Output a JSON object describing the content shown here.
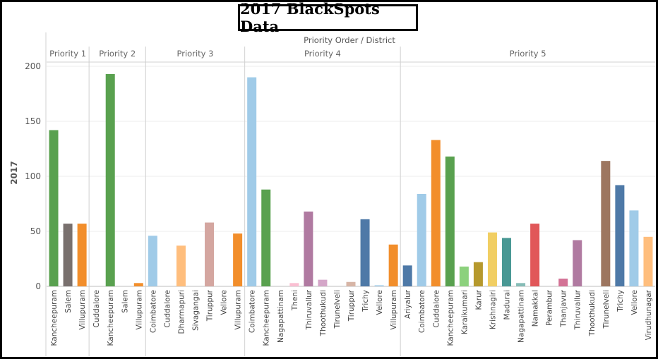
{
  "chart_data": {
    "type": "bar",
    "title": "2017 BlackSpots Data",
    "column_header": "Priority Order / District",
    "ylabel": "2017",
    "ylim": [
      0,
      200
    ],
    "yticks": [
      0,
      50,
      100,
      150,
      200
    ],
    "grid": true,
    "colors": {
      "green": "#59a14f",
      "gray": "#79706e",
      "orange": "#f28e2b",
      "lightblue": "#a0cbe8",
      "peach": "#ffbe7d",
      "tan": "#d4a6a0",
      "pink": "#fabfd2",
      "purple": "#b07aa1",
      "lilac": "#d4a6c8",
      "taupe": "#d7b5a6",
      "blue": "#4e79a7",
      "lightgreen": "#8cd17d",
      "olive": "#b6992d",
      "yellow": "#f1ce63",
      "teal": "#499894",
      "seafoam": "#86bcb6",
      "red": "#e15759",
      "rose": "#d37295",
      "brown": "#9d7660"
    },
    "groups": [
      {
        "name": "Priority 1",
        "bars": [
          {
            "label": "Kancheepuram",
            "value": 142,
            "color": "green"
          },
          {
            "label": "Salem",
            "value": 57,
            "color": "gray"
          },
          {
            "label": "Villupuram",
            "value": 57,
            "color": "orange"
          }
        ]
      },
      {
        "name": "Priority 2",
        "bars": [
          {
            "label": "Cuddalore",
            "value": 0,
            "color": "orange"
          },
          {
            "label": "Kancheepuram",
            "value": 193,
            "color": "green"
          },
          {
            "label": "Salem",
            "value": 0,
            "color": "gray"
          },
          {
            "label": "Villupuram",
            "value": 3,
            "color": "orange"
          }
        ]
      },
      {
        "name": "Priority 3",
        "bars": [
          {
            "label": "Coimbatore",
            "value": 46,
            "color": "lightblue"
          },
          {
            "label": "Cuddalore",
            "value": 0,
            "color": "orange"
          },
          {
            "label": "Dharmapuri",
            "value": 37,
            "color": "peach"
          },
          {
            "label": "Sivagangai",
            "value": 0,
            "color": "tan"
          },
          {
            "label": "Tiruppur",
            "value": 58,
            "color": "tan"
          },
          {
            "label": "Vellore",
            "value": 0,
            "color": "lightblue"
          },
          {
            "label": "Villupuram",
            "value": 48,
            "color": "orange"
          }
        ]
      },
      {
        "name": "Priority 4",
        "bars": [
          {
            "label": "Coimbatore",
            "value": 190,
            "color": "lightblue"
          },
          {
            "label": "Kancheepuram",
            "value": 88,
            "color": "green"
          },
          {
            "label": "Nagapattinam",
            "value": 0,
            "color": "seafoam"
          },
          {
            "label": "Theni",
            "value": 3,
            "color": "pink"
          },
          {
            "label": "Thiruvallur",
            "value": 68,
            "color": "purple"
          },
          {
            "label": "Thoothukudi",
            "value": 6,
            "color": "lilac"
          },
          {
            "label": "Tirunelveli",
            "value": 0,
            "color": "brown"
          },
          {
            "label": "Tiruppur",
            "value": 4,
            "color": "taupe"
          },
          {
            "label": "Trichy",
            "value": 61,
            "color": "blue"
          },
          {
            "label": "Vellore",
            "value": 1,
            "color": "lightblue"
          },
          {
            "label": "Villupuram",
            "value": 38,
            "color": "orange"
          }
        ]
      },
      {
        "name": "Priority 5",
        "bars": [
          {
            "label": "Ariyalur",
            "value": 19,
            "color": "blue"
          },
          {
            "label": "Coimbatore",
            "value": 84,
            "color": "lightblue"
          },
          {
            "label": "Cuddalore",
            "value": 133,
            "color": "orange"
          },
          {
            "label": "Kancheepuram",
            "value": 118,
            "color": "green"
          },
          {
            "label": "Karaikumari",
            "value": 18,
            "color": "lightgreen"
          },
          {
            "label": "Karur",
            "value": 22,
            "color": "olive"
          },
          {
            "label": "Krishnagiri",
            "value": 49,
            "color": "yellow"
          },
          {
            "label": "Madurai",
            "value": 44,
            "color": "teal"
          },
          {
            "label": "Nagapattinam",
            "value": 3,
            "color": "seafoam"
          },
          {
            "label": "Namakkal",
            "value": 57,
            "color": "red"
          },
          {
            "label": "Perambur",
            "value": 0,
            "color": "gray"
          },
          {
            "label": "Thanjavur",
            "value": 7,
            "color": "rose"
          },
          {
            "label": "Thiruvallur",
            "value": 42,
            "color": "purple"
          },
          {
            "label": "Thoothukudi",
            "value": 0,
            "color": "lilac"
          },
          {
            "label": "Tirunelveli",
            "value": 114,
            "color": "brown"
          },
          {
            "label": "Trichy",
            "value": 92,
            "color": "blue"
          },
          {
            "label": "Vellore",
            "value": 69,
            "color": "lightblue"
          },
          {
            "label": "Virudhunagar",
            "value": 45,
            "color": "peach"
          }
        ]
      }
    ]
  }
}
